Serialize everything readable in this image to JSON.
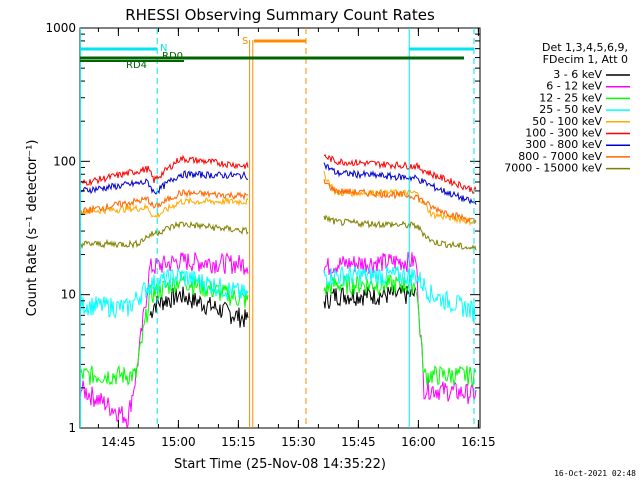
{
  "chart_data": {
    "type": "line",
    "title": "RHESSI Observing Summary Count Rates",
    "xlabel": "Start Time (25-Nov-08 14:35:22)",
    "ylabel": "Count Rate (s⁻¹ detector⁻¹)",
    "yscale": "log",
    "ylim": [
      1,
      1000
    ],
    "xlim_minutes": [
      0,
      100
    ],
    "y_ticks": [
      {
        "v": 1,
        "label": "1"
      },
      {
        "v": 10,
        "label": "10"
      },
      {
        "v": 100,
        "label": "100"
      },
      {
        "v": 1000,
        "label": "1000"
      }
    ],
    "x_ticks": [
      {
        "t": 9.6,
        "label": "14:45"
      },
      {
        "t": 24.6,
        "label": "15:00"
      },
      {
        "t": 39.6,
        "label": "15:15"
      },
      {
        "t": 54.6,
        "label": "15:30"
      },
      {
        "t": 69.6,
        "label": "15:45"
      },
      {
        "t": 84.6,
        "label": "16:00"
      },
      {
        "t": 99.6,
        "label": "16:15"
      }
    ],
    "legend_header": [
      "Det 1,3,4,5,6,9,",
      "FDecim 1, Att 0"
    ],
    "legend_position": "right",
    "series": [
      {
        "name": "3 - 6 keV",
        "color": "#000000",
        "segs": [
          [
            17.5,
            7.0
          ],
          [
            18.5,
            8.5
          ],
          [
            25,
            10
          ],
          [
            42,
            6.5
          ]
        ],
        "segs2": [
          [
            61,
            9
          ],
          [
            64,
            10
          ],
          [
            84,
            10
          ]
        ]
      },
      {
        "name": "6 - 12 keV",
        "color": "#ff00ff",
        "segs": [
          [
            0,
            2.0
          ],
          [
            12,
            1.2
          ],
          [
            14,
            2.5
          ],
          [
            17.5,
            16
          ],
          [
            25,
            18
          ],
          [
            42,
            17
          ]
        ],
        "segs2": [
          [
            61,
            16
          ],
          [
            64,
            17
          ],
          [
            84,
            18
          ],
          [
            86,
            2.0
          ],
          [
            99,
            1.8
          ]
        ]
      },
      {
        "name": "12 - 25 keV",
        "color": "#00ff00",
        "segs": [
          [
            0,
            2.5
          ],
          [
            14,
            2.5
          ],
          [
            17.5,
            10
          ],
          [
            25,
            13
          ],
          [
            42,
            9
          ]
        ],
        "segs2": [
          [
            61,
            11
          ],
          [
            64,
            12
          ],
          [
            84,
            12
          ],
          [
            86,
            2.5
          ],
          [
            99,
            2.5
          ]
        ]
      },
      {
        "name": "25 - 50 keV",
        "color": "#00ffff",
        "segs": [
          [
            0,
            8.5
          ],
          [
            12,
            8
          ],
          [
            17.5,
            12
          ],
          [
            25,
            14
          ],
          [
            42,
            10
          ]
        ],
        "segs2": [
          [
            61,
            14
          ],
          [
            64,
            14
          ],
          [
            84,
            14
          ],
          [
            88,
            10
          ],
          [
            99,
            7.5
          ]
        ]
      },
      {
        "name": "50 - 100 keV",
        "color": "#ffaa00",
        "segs": [
          [
            0,
            42
          ],
          [
            17,
            45
          ],
          [
            18.5,
            38
          ],
          [
            25,
            50
          ],
          [
            42,
            50
          ]
        ],
        "segs2": [
          [
            61,
            80
          ],
          [
            64,
            58
          ],
          [
            84,
            58
          ],
          [
            88,
            40
          ],
          [
            99,
            35
          ]
        ]
      },
      {
        "name": "100 - 300 keV",
        "color": "#ff0000",
        "segs": [
          [
            0,
            68
          ],
          [
            17,
            88
          ],
          [
            18.5,
            72
          ],
          [
            25,
            105
          ],
          [
            42,
            92
          ]
        ],
        "segs2": [
          [
            61,
            110
          ],
          [
            64,
            100
          ],
          [
            84,
            92
          ],
          [
            88,
            80
          ],
          [
            99,
            60
          ]
        ]
      },
      {
        "name": "300 - 800 keV",
        "color": "#0000cc",
        "segs": [
          [
            0,
            60
          ],
          [
            17,
            70
          ],
          [
            18.5,
            58
          ],
          [
            25,
            80
          ],
          [
            42,
            78
          ]
        ],
        "segs2": [
          [
            61,
            95
          ],
          [
            64,
            82
          ],
          [
            84,
            75
          ],
          [
            88,
            65
          ],
          [
            99,
            48
          ]
        ]
      },
      {
        "name": "800 - 7000 keV",
        "color": "#ff6600",
        "segs": [
          [
            0,
            42
          ],
          [
            17,
            52
          ],
          [
            18.5,
            45
          ],
          [
            25,
            58
          ],
          [
            42,
            55
          ]
        ],
        "segs2": [
          [
            61,
            70
          ],
          [
            64,
            60
          ],
          [
            84,
            55
          ],
          [
            88,
            45
          ],
          [
            99,
            35
          ]
        ]
      },
      {
        "name": "7000 - 15000 keV",
        "color": "#808000",
        "segs": [
          [
            0,
            24
          ],
          [
            14,
            24
          ],
          [
            17.5,
            28
          ],
          [
            25,
            34
          ],
          [
            42,
            30
          ]
        ],
        "segs2": [
          [
            61,
            38
          ],
          [
            64,
            35
          ],
          [
            84,
            33
          ],
          [
            88,
            25
          ],
          [
            99,
            22
          ]
        ]
      }
    ],
    "annotations": [
      {
        "text": "S",
        "color": "#ff8c00"
      },
      {
        "text": "N",
        "color": "#00e5ee"
      },
      {
        "text": "RD0",
        "color": "#006400"
      },
      {
        "text": "RD4",
        "color": "#006400"
      }
    ],
    "grid": false
  },
  "timestamp": "16-Oct-2021 02:48"
}
